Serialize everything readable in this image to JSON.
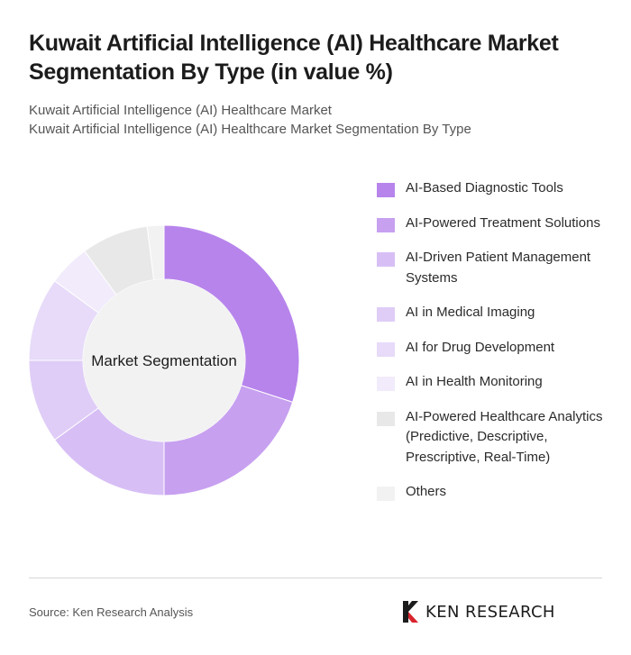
{
  "header": {
    "title": "Kuwait Artificial Intelligence (AI) Healthcare Market Segmentation By Type (in value %)",
    "subtitle_lines": [
      "Kuwait Artificial Intelligence (AI) Healthcare Market",
      "Kuwait Artificial Intelligence (AI) Healthcare Market Segmentation By Type"
    ]
  },
  "chart_data": {
    "type": "pie",
    "variant": "donut",
    "center_label": "Market Segmentation",
    "legend_position": "right",
    "unit": "%",
    "categories": [
      "AI-Based Diagnostic Tools",
      "AI-Powered Treatment Solutions",
      "AI-Driven Patient Management Systems",
      "AI in Medical Imaging",
      "AI for Drug Development",
      "AI in Health Monitoring",
      "AI-Powered Healthcare Analytics (Predictive, Descriptive, Prescriptive, Real-Time)",
      "Others"
    ],
    "values": [
      30,
      20,
      15,
      10,
      10,
      5,
      8,
      2
    ],
    "colors": [
      "#b784ec",
      "#c7a0f0",
      "#d7bff5",
      "#dfcdf7",
      "#e7dbf9",
      "#f1ebfb",
      "#e8e8e8",
      "#f2f2f2"
    ]
  },
  "footer": {
    "source": "Source: Ken Research Analysis",
    "brand_name": "KEN RESEARCH"
  }
}
